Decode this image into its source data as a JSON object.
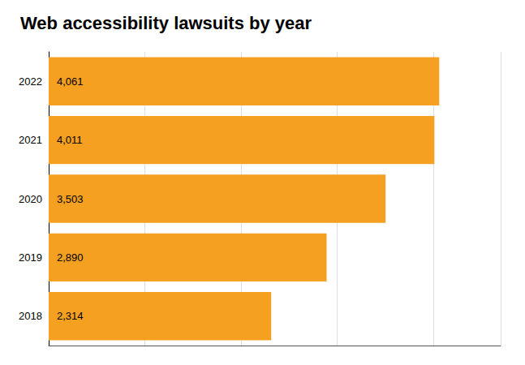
{
  "chart_data": {
    "type": "bar",
    "orientation": "horizontal",
    "title": "Web accessibility lawsuits by year",
    "categories": [
      "2022",
      "2021",
      "2020",
      "2019",
      "2018"
    ],
    "values": [
      4061,
      4011,
      3503,
      2890,
      2314
    ],
    "value_labels": [
      "4,061",
      "4,011",
      "3,503",
      "2,890",
      "2,314"
    ],
    "data_labels": true,
    "color": "#F5A020",
    "xlim": [
      0,
      4700
    ],
    "xticks": [
      1000,
      2000,
      3000,
      4000
    ],
    "grid": true,
    "tick_labels": "y"
  }
}
